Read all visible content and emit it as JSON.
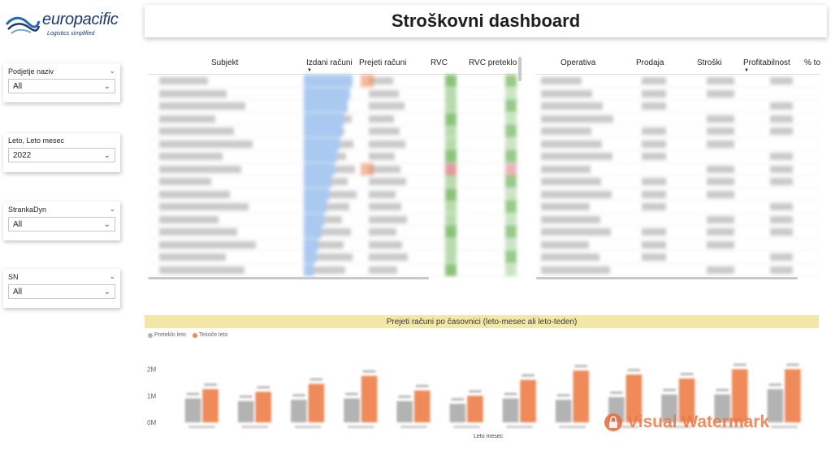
{
  "brand": {
    "name": "europacific",
    "tagline": "Logistics simplified"
  },
  "title": "Stroškovni dashboard",
  "slicers": [
    {
      "label": "Podjetje naziv",
      "value": "All"
    },
    {
      "label": "Leto, Leto mesec",
      "value": "2022"
    },
    {
      "label": "StrankaDyn",
      "value": "All"
    },
    {
      "label": "SN",
      "value": "All"
    }
  ],
  "table_left": {
    "headers": [
      "Subjekt",
      "Izdani računi",
      "Prejeti računi",
      "RVC",
      "RVC preteklo"
    ],
    "sorted_column": "Izdani računi"
  },
  "table_right": {
    "headers": [
      "Operativa",
      "Prodaja",
      "Stroški",
      "Profitabilnost",
      "% to"
    ],
    "sorted_column": "Profitabilnost"
  },
  "chart_data": {
    "type": "bar",
    "title": "Prejeti računi po časovnici (leto-mesec ali leto-teden)",
    "xlabel": "Leto mesec",
    "ylabel": "",
    "y_ticks": [
      "2M",
      "1M",
      "0M"
    ],
    "ylim": [
      0,
      2200000
    ],
    "legend_position": "top-left",
    "categories": [
      "1",
      "2",
      "3",
      "4",
      "5",
      "6",
      "7",
      "8",
      "9",
      "10",
      "11",
      "12"
    ],
    "series": [
      {
        "name": "Preteklo leto",
        "color": "#b3b3b3",
        "values": [
          900000,
          800000,
          850000,
          900000,
          800000,
          700000,
          900000,
          850000,
          950000,
          1050000,
          1050000,
          1250000
        ]
      },
      {
        "name": "Tekoče leto",
        "color": "#ef8a5a",
        "values": [
          1250000,
          1150000,
          1450000,
          1750000,
          1200000,
          1000000,
          1600000,
          1950000,
          1800000,
          1650000,
          2000000,
          2000000
        ]
      }
    ]
  },
  "watermark": "Visual Watermark",
  "colors": {
    "orange": "#ef8a5a",
    "grey": "#b3b3b3",
    "title_band": "#f3e7a8",
    "databar_blue": "#a9c9f0",
    "rvc_green": "#7ebd6b",
    "rvc_red": "#c94b4b"
  }
}
